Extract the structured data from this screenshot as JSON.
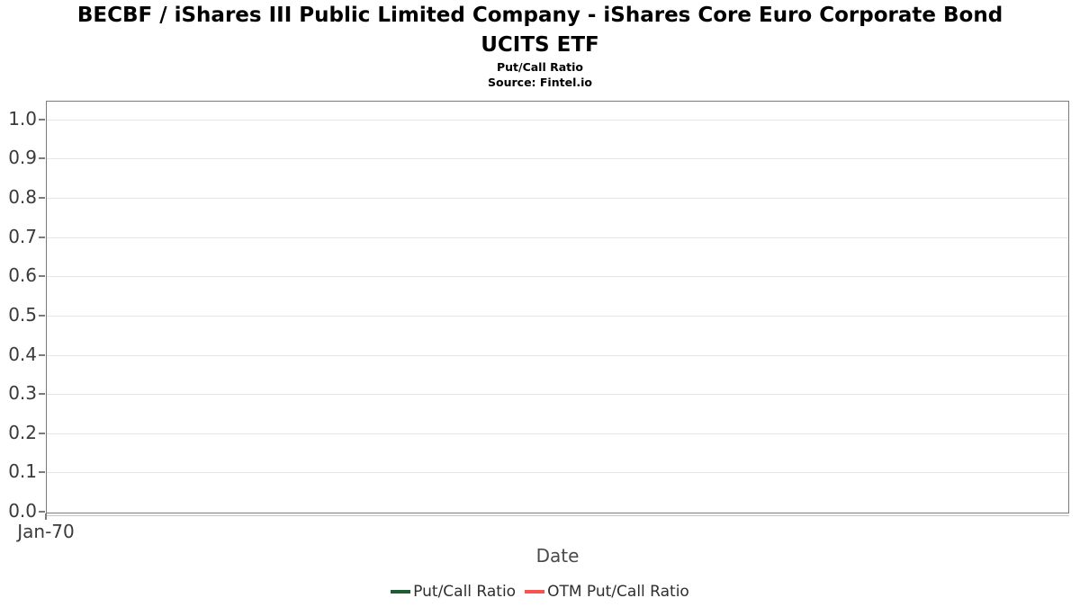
{
  "header": {
    "title_lines": [
      "BECBF / iShares III Public Limited Company - iShares Core Euro Corporate Bond",
      "UCITS ETF"
    ],
    "subtitle": "Put/Call Ratio",
    "source": "Source: Fintel.io"
  },
  "chart_data": {
    "type": "line",
    "title": "BECBF / iShares III Public Limited Company - iShares Core Euro Corporate Bond UCITS ETF",
    "subtitle": "Put/Call Ratio",
    "source": "Source: Fintel.io",
    "xlabel": "Date",
    "ylabel": "",
    "x_tick_labels": [
      "Jan-70"
    ],
    "yticks": [
      0.0,
      0.1,
      0.2,
      0.3,
      0.4,
      0.5,
      0.6,
      0.7,
      0.8,
      0.9,
      1.0
    ],
    "ytick_format_decimals": 1,
    "ylim": [
      0.0,
      1.0455
    ],
    "grid": "horizontal",
    "legend_position": "bottom",
    "colors": {
      "gridline": "#e6e6e6",
      "axis_border": "#7b7b7b",
      "tick_label": "#3a3a3a",
      "axis_label": "#4a4a4a"
    },
    "series": [
      {
        "name": "Put/Call Ratio",
        "color": "#1e5c33",
        "x": [],
        "values": []
      },
      {
        "name": "OTM Put/Call Ratio",
        "color": "#f8534d",
        "x": [],
        "values": []
      }
    ]
  }
}
